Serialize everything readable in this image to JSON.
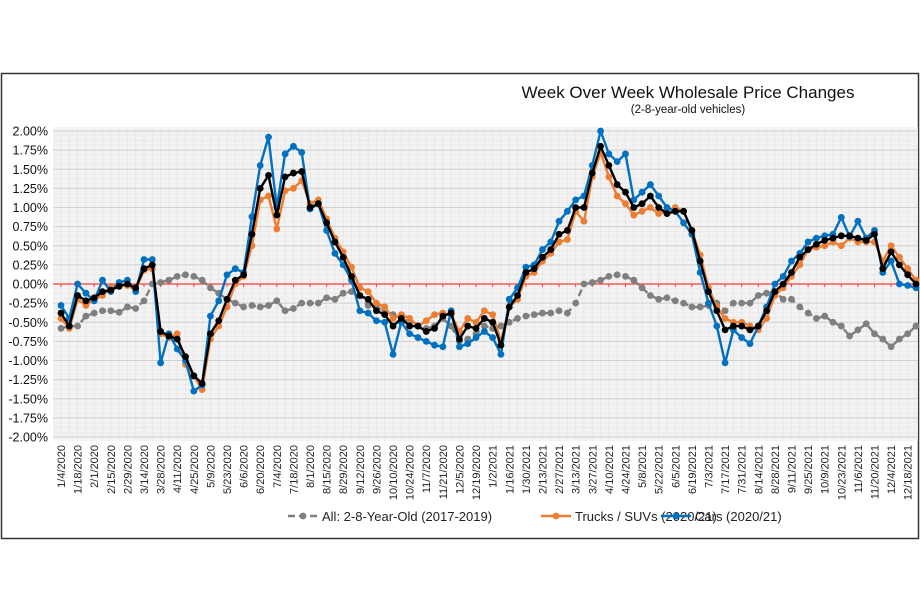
{
  "chart_data": {
    "type": "line",
    "title": "Week Over Week Wholesale Price Changes",
    "subtitle": "(2-8-year-old vehicles)",
    "xlabel": "",
    "ylabel": "",
    "ylim": [
      -2.0,
      2.0
    ],
    "y_ticks": [
      "2.00%",
      "1.75%",
      "1.50%",
      "1.25%",
      "1.00%",
      "0.75%",
      "0.50%",
      "0.25%",
      "0.00%",
      "-0.25%",
      "-0.50%",
      "-0.75%",
      "-1.00%",
      "-1.25%",
      "-1.50%",
      "-1.75%",
      "-2.00%"
    ],
    "grid": true,
    "zero_line_color": "#ff3b3b",
    "legend_placement": "bottom",
    "x": [
      "1/4/2020",
      "1/11/2020",
      "1/18/2020",
      "1/25/2020",
      "2/1/2020",
      "2/8/2020",
      "2/15/2020",
      "2/22/2020",
      "2/29/2020",
      "3/7/2020",
      "3/14/2020",
      "3/21/2020",
      "3/28/2020",
      "4/4/2020",
      "4/11/2020",
      "4/18/2020",
      "4/25/2020",
      "5/2/2020",
      "5/9/2020",
      "5/16/2020",
      "5/23/2020",
      "5/30/2020",
      "6/6/2020",
      "6/13/2020",
      "6/20/2020",
      "6/27/2020",
      "7/4/2020",
      "7/11/2020",
      "7/18/2020",
      "7/25/2020",
      "8/1/2020",
      "8/8/2020",
      "8/15/2020",
      "8/22/2020",
      "8/29/2020",
      "9/5/2020",
      "9/12/2020",
      "9/19/2020",
      "9/26/2020",
      "10/3/2020",
      "10/10/2020",
      "10/17/2020",
      "10/24/2020",
      "10/31/2020",
      "11/7/2020",
      "11/14/2020",
      "11/21/2020",
      "11/28/2020",
      "12/5/2020",
      "12/12/2020",
      "12/19/2020",
      "12/26/2020",
      "1/2/2021",
      "1/9/2021",
      "1/16/2021",
      "1/23/2021",
      "1/30/2021",
      "2/6/2021",
      "2/13/2021",
      "2/20/2021",
      "2/27/2021",
      "3/6/2021",
      "3/13/2021",
      "3/20/2021",
      "3/27/2021",
      "4/3/2021",
      "4/10/2021",
      "4/17/2021",
      "4/24/2021",
      "5/1/2021",
      "5/8/2021",
      "5/15/2021",
      "5/22/2021",
      "5/29/2021",
      "6/5/2021",
      "6/12/2021",
      "6/19/2021",
      "6/26/2021",
      "7/3/2021",
      "7/10/2021",
      "7/17/2021",
      "7/24/2021",
      "7/31/2021",
      "8/7/2021",
      "8/14/2021",
      "8/21/2021",
      "8/28/2021",
      "9/4/2021",
      "9/11/2021",
      "9/18/2021",
      "9/25/2021",
      "10/2/2021",
      "10/9/2021",
      "10/16/2021",
      "10/23/2021",
      "10/30/2021",
      "11/6/2021",
      "11/13/2021",
      "11/20/2021",
      "11/27/2021",
      "12/4/2021",
      "12/11/2021",
      "12/18/2021",
      "12/25/2021"
    ],
    "series": [
      {
        "name": "All: 2-8-Year-Old (2017-2019)",
        "color": "#7f7f7f",
        "dashed": true,
        "values": [
          -0.58,
          -0.55,
          -0.55,
          -0.42,
          -0.38,
          -0.35,
          -0.35,
          -0.37,
          -0.3,
          -0.32,
          -0.22,
          0.0,
          0.02,
          0.05,
          0.1,
          0.12,
          0.1,
          0.05,
          -0.05,
          -0.12,
          -0.2,
          -0.25,
          -0.3,
          -0.28,
          -0.3,
          -0.28,
          -0.22,
          -0.35,
          -0.32,
          -0.25,
          -0.25,
          -0.25,
          -0.18,
          -0.2,
          -0.12,
          -0.1,
          -0.15,
          -0.28,
          -0.3,
          -0.35,
          -0.4,
          -0.45,
          -0.5,
          -0.55,
          -0.58,
          -0.55,
          -0.45,
          -0.55,
          -0.75,
          -0.72,
          -0.65,
          -0.55,
          -0.58,
          -0.55,
          -0.5,
          -0.45,
          -0.42,
          -0.4,
          -0.38,
          -0.38,
          -0.35,
          -0.38,
          -0.25,
          0.0,
          0.02,
          0.05,
          0.1,
          0.12,
          0.1,
          0.05,
          -0.05,
          -0.15,
          -0.2,
          -0.18,
          -0.22,
          -0.25,
          -0.3,
          -0.3,
          -0.28,
          -0.25,
          -0.35,
          -0.25,
          -0.25,
          -0.25,
          -0.15,
          -0.12,
          -0.1,
          -0.2,
          -0.2,
          -0.3,
          -0.38,
          -0.45,
          -0.42,
          -0.5,
          -0.55,
          -0.68,
          -0.6,
          -0.52,
          -0.65,
          -0.72,
          -0.82,
          -0.72,
          -0.65,
          -0.55
        ]
      },
      {
        "name": "Trucks / SUVs (2020/21)",
        "color": "#ed7d31",
        "dashed": false,
        "values": [
          -0.45,
          -0.58,
          -0.2,
          -0.28,
          -0.2,
          -0.15,
          -0.05,
          0.0,
          -0.02,
          -0.08,
          0.18,
          0.2,
          -0.65,
          -0.7,
          -0.65,
          -1.05,
          -1.2,
          -1.38,
          -0.72,
          -0.55,
          -0.3,
          0.0,
          0.1,
          0.5,
          1.1,
          1.15,
          0.72,
          1.22,
          1.25,
          1.35,
          1.05,
          1.1,
          0.85,
          0.6,
          0.42,
          0.22,
          -0.05,
          -0.1,
          -0.25,
          -0.3,
          -0.45,
          -0.4,
          -0.45,
          -0.55,
          -0.48,
          -0.4,
          -0.38,
          -0.4,
          -0.62,
          -0.45,
          -0.5,
          -0.35,
          -0.4,
          -0.75,
          -0.3,
          -0.2,
          0.1,
          0.15,
          0.3,
          0.4,
          0.55,
          0.58,
          0.95,
          0.82,
          1.4,
          1.72,
          1.4,
          1.15,
          1.05,
          0.9,
          0.95,
          1.0,
          0.92,
          0.95,
          1.0,
          0.95,
          0.7,
          0.38,
          -0.05,
          -0.3,
          -0.45,
          -0.5,
          -0.5,
          -0.55,
          -0.6,
          -0.45,
          -0.15,
          -0.05,
          0.1,
          0.25,
          0.45,
          0.48,
          0.5,
          0.55,
          0.5,
          0.6,
          0.55,
          0.55,
          0.55,
          0.3,
          0.5,
          0.35,
          0.2,
          0.05
        ]
      },
      {
        "name": "Cars (2020/21)",
        "color": "#0070c0",
        "dashed": false,
        "values": [
          -0.28,
          -0.45,
          0.0,
          -0.12,
          -0.22,
          0.05,
          -0.1,
          0.02,
          0.05,
          -0.1,
          0.32,
          0.32,
          -1.03,
          -0.65,
          -0.85,
          -1.0,
          -1.4,
          -1.32,
          -0.42,
          -0.22,
          0.12,
          0.2,
          0.15,
          0.88,
          1.55,
          1.92,
          1.0,
          1.7,
          1.8,
          1.72,
          0.98,
          1.05,
          0.7,
          0.4,
          0.25,
          0.05,
          -0.35,
          -0.38,
          -0.48,
          -0.5,
          -0.92,
          -0.5,
          -0.65,
          -0.7,
          -0.75,
          -0.8,
          -0.82,
          -0.35,
          -0.82,
          -0.78,
          -0.7,
          -0.62,
          -0.7,
          -0.92,
          -0.2,
          -0.05,
          0.22,
          0.25,
          0.45,
          0.55,
          0.82,
          0.95,
          1.1,
          1.15,
          1.55,
          2.0,
          1.7,
          1.6,
          1.7,
          1.1,
          1.2,
          1.3,
          1.15,
          1.0,
          0.95,
          0.8,
          0.65,
          0.15,
          -0.25,
          -0.55,
          -1.03,
          -0.6,
          -0.7,
          -0.78,
          -0.55,
          -0.3,
          0.0,
          0.1,
          0.3,
          0.4,
          0.55,
          0.6,
          0.63,
          0.65,
          0.87,
          0.62,
          0.82,
          0.6,
          0.7,
          0.15,
          0.3,
          0.0,
          -0.02,
          -0.05
        ]
      },
      {
        "color": "#000000",
        "dashed": false,
        "values": [
          -0.38,
          -0.55,
          -0.15,
          -0.22,
          -0.18,
          -0.1,
          -0.08,
          -0.03,
          0.0,
          -0.05,
          0.2,
          0.25,
          -0.62,
          -0.68,
          -0.72,
          -0.95,
          -1.2,
          -1.3,
          -0.65,
          -0.48,
          -0.2,
          0.05,
          0.12,
          0.65,
          1.25,
          1.42,
          0.9,
          1.4,
          1.45,
          1.47,
          1.0,
          1.05,
          0.8,
          0.55,
          0.35,
          0.1,
          -0.15,
          -0.2,
          -0.35,
          -0.4,
          -0.55,
          -0.45,
          -0.55,
          -0.55,
          -0.62,
          -0.58,
          -0.42,
          -0.38,
          -0.72,
          -0.55,
          -0.58,
          -0.45,
          -0.5,
          -0.8,
          -0.3,
          -0.15,
          0.15,
          0.2,
          0.35,
          0.45,
          0.65,
          0.7,
          1.0,
          1.0,
          1.45,
          1.8,
          1.55,
          1.3,
          1.2,
          1.0,
          1.05,
          1.15,
          1.0,
          0.92,
          0.95,
          0.95,
          0.7,
          0.3,
          -0.1,
          -0.35,
          -0.6,
          -0.55,
          -0.55,
          -0.6,
          -0.55,
          -0.35,
          -0.1,
          0.0,
          0.15,
          0.35,
          0.45,
          0.52,
          0.57,
          0.6,
          0.63,
          0.63,
          0.6,
          0.57,
          0.65,
          0.2,
          0.42,
          0.25,
          0.12,
          0.0
        ]
      }
    ]
  }
}
